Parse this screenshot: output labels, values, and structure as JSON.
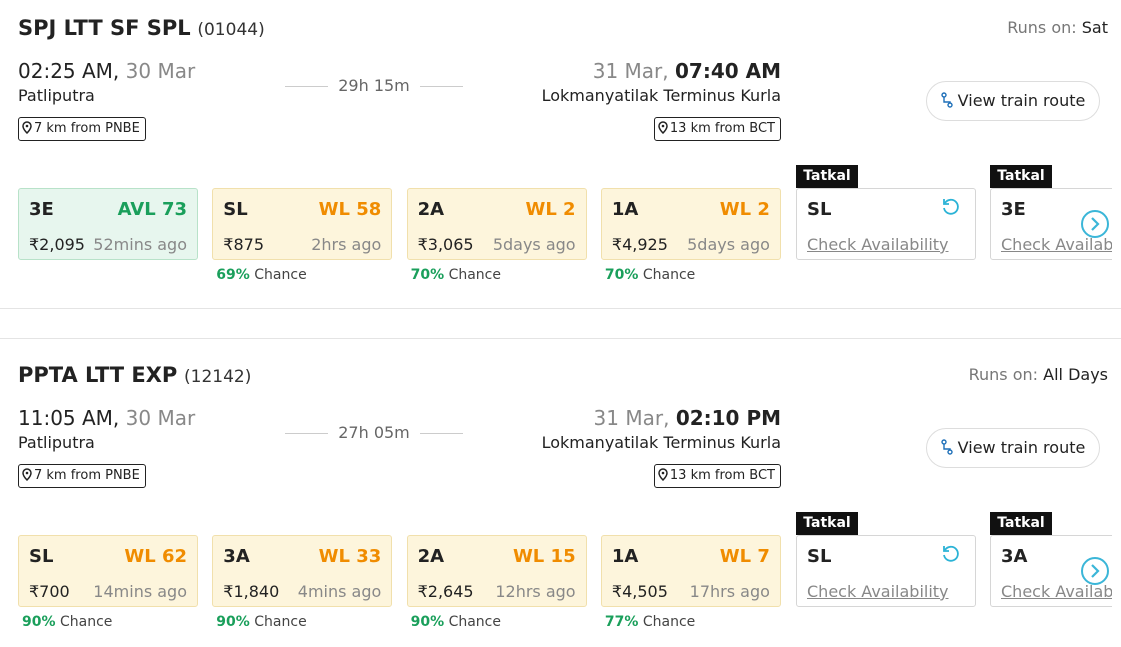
{
  "trains": [
    {
      "name": "SPJ LTT SF SPL",
      "number": "(01044)",
      "runs_label": "Runs on:",
      "runs": "Sat",
      "dep_time": "02:25 AM,",
      "dep_date": "30 Mar",
      "dep_station": "Patliputra",
      "dep_distance": "7 km from PNBE",
      "duration": "29h 15m",
      "arr_date": "31 Mar,",
      "arr_time": "07:40 AM",
      "arr_station": "Lokmanyatilak Terminus Kurla",
      "arr_distance": "13 km from BCT",
      "route_button": "View train route",
      "classes": [
        {
          "class": "3E",
          "status": "AVL 73",
          "fare": "₹2,095",
          "updated": "52mins ago"
        },
        {
          "class": "SL",
          "status": "WL 58",
          "fare": "₹875",
          "updated": "2hrs ago",
          "chance_pct": "69%",
          "chance_label": "Chance"
        },
        {
          "class": "2A",
          "status": "WL 2",
          "fare": "₹3,065",
          "updated": "5days ago",
          "chance_pct": "70%",
          "chance_label": "Chance"
        },
        {
          "class": "1A",
          "status": "WL 2",
          "fare": "₹4,925",
          "updated": "5days ago",
          "chance_pct": "70%",
          "chance_label": "Chance"
        }
      ],
      "tatkal": [
        {
          "badge": "Tatkal",
          "class": "SL",
          "action": "Check Availability"
        },
        {
          "badge": "Tatkal",
          "class": "3E",
          "action": "Check Availability"
        }
      ]
    },
    {
      "name": "PPTA LTT EXP",
      "number": "(12142)",
      "runs_label": "Runs on:",
      "runs": "All Days",
      "dep_time": "11:05 AM,",
      "dep_date": "30 Mar",
      "dep_station": "Patliputra",
      "dep_distance": "7 km from PNBE",
      "duration": "27h 05m",
      "arr_date": "31 Mar,",
      "arr_time": "02:10 PM",
      "arr_station": "Lokmanyatilak Terminus Kurla",
      "arr_distance": "13 km from BCT",
      "route_button": "View train route",
      "classes": [
        {
          "class": "SL",
          "status": "WL 62",
          "fare": "₹700",
          "updated": "14mins ago",
          "chance_pct": "90%",
          "chance_label": "Chance"
        },
        {
          "class": "3A",
          "status": "WL 33",
          "fare": "₹1,840",
          "updated": "4mins ago",
          "chance_pct": "90%",
          "chance_label": "Chance"
        },
        {
          "class": "2A",
          "status": "WL 15",
          "fare": "₹2,645",
          "updated": "12hrs ago",
          "chance_pct": "90%",
          "chance_label": "Chance"
        },
        {
          "class": "1A",
          "status": "WL 7",
          "fare": "₹4,505",
          "updated": "17hrs ago",
          "chance_pct": "77%",
          "chance_label": "Chance"
        }
      ],
      "tatkal": [
        {
          "badge": "Tatkal",
          "class": "SL",
          "action": "Check Availability"
        },
        {
          "badge": "Tatkal",
          "class": "3A",
          "action": "Check Availability"
        }
      ]
    }
  ]
}
